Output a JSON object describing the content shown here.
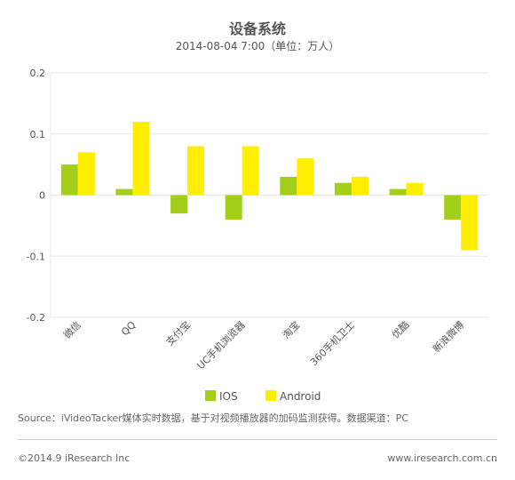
{
  "header": {
    "title": "设备系统",
    "subtitle": "2014-08-04 7:00（单位：万人）"
  },
  "chart_data": {
    "type": "bar",
    "title": "设备系统",
    "subtitle": "2014-08-04 7:00（单位：万人）",
    "xlabel": "",
    "ylabel": "",
    "categories": [
      "微信",
      "QQ",
      "支付宝",
      "UC手机浏览器",
      "淘宝",
      "360手机卫士",
      "优酷",
      "新浪微博"
    ],
    "series": [
      {
        "name": "IOS",
        "color": "#a3cf1b",
        "values": [
          0.05,
          0.01,
          -0.03,
          -0.04,
          0.03,
          0.02,
          0.01,
          -0.04
        ]
      },
      {
        "name": "Android",
        "color": "#ffee00",
        "values": [
          0.07,
          0.12,
          0.08,
          0.08,
          0.06,
          0.03,
          0.02,
          -0.09
        ]
      }
    ],
    "ylim": [
      -0.2,
      0.2
    ],
    "yticks": [
      "0.2",
      "0.1",
      "0",
      "-0.1",
      "-0.2"
    ],
    "grid": true,
    "legend": "bottom-center"
  },
  "footer": {
    "source": "Source：iVideoTacker媒体实时数据，基于对视频播放器的加码监测获得。数据渠道：PC",
    "copyright": "©2014.9 iResearch Inc",
    "website": "www.iresearch.com.cn"
  }
}
